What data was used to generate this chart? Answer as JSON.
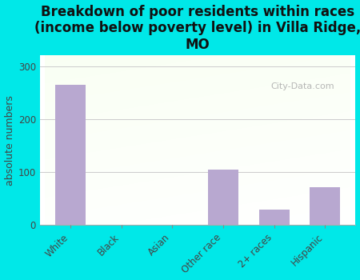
{
  "categories": [
    "White",
    "Black",
    "Asian",
    "Other race",
    "2+ races",
    "Hispanic"
  ],
  "values": [
    265,
    0,
    0,
    105,
    30,
    72
  ],
  "bar_color": "#b8a8d0",
  "title": "Breakdown of poor residents within races\n(income below poverty level) in Villa Ridge,\nMO",
  "ylabel": "absolute numbers",
  "ylim": [
    0,
    320
  ],
  "yticks": [
    0,
    100,
    200,
    300
  ],
  "background_color": "#00e8e8",
  "watermark": "City-Data.com",
  "title_fontsize": 12,
  "ylabel_fontsize": 9,
  "tick_fontsize": 8.5
}
